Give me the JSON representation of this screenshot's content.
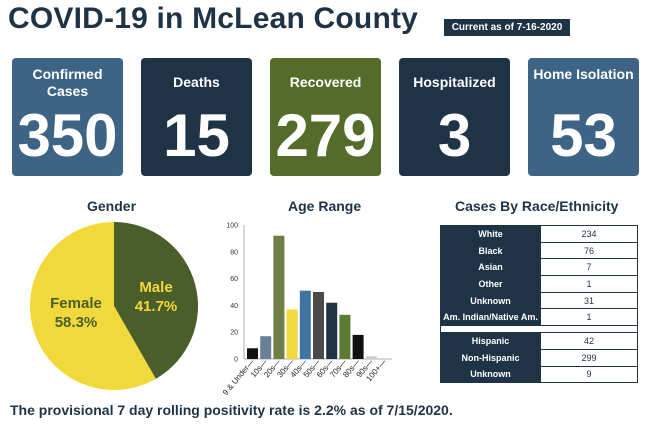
{
  "header": {
    "title": "COVID-19 in McLean County",
    "as_of": "Current as of 7-16-2020"
  },
  "cards": [
    {
      "label": "Confirmed Cases",
      "value": "350",
      "color": "#3d6485"
    },
    {
      "label": "Deaths",
      "value": "15",
      "color": "#1f3347"
    },
    {
      "label": "Recovered",
      "value": "279",
      "color": "#556b2a"
    },
    {
      "label": "Hospitalized",
      "value": "3",
      "color": "#1f3347"
    },
    {
      "label": "Home Isolation",
      "value": "53",
      "color": "#3d6485"
    }
  ],
  "gender": {
    "title": "Gender",
    "slices": [
      {
        "label": "Male",
        "percent_label": "41.7%",
        "value": 41.7,
        "color": "#4b5e2a",
        "text_color": "#f2d93b"
      },
      {
        "label": "Female",
        "percent_label": "58.3%",
        "value": 58.3,
        "color": "#f2d93b",
        "text_color": "#4b5e2a"
      }
    ]
  },
  "age": {
    "title": "Age Range",
    "yticks": [
      "0",
      "20",
      "40",
      "60",
      "80",
      "100"
    ],
    "ylim": [
      0,
      100
    ],
    "categories": [
      "9 & Under",
      "10s",
      "20s",
      "30s",
      "40s",
      "50s",
      "60s",
      "70s",
      "80s",
      "90s",
      "100+"
    ],
    "values": [
      8,
      17,
      92,
      37,
      51,
      50,
      42,
      33,
      18,
      2,
      0
    ],
    "colors": [
      "#111111",
      "#6b7f96",
      "#6f7e45",
      "#f2d93b",
      "#3f73a0",
      "#4a4a4a",
      "#1f3347",
      "#5c7a31",
      "#111111",
      "#cccccc",
      "#ffffff"
    ]
  },
  "race": {
    "title": "Cases By Race/Ethnicity",
    "rows": [
      {
        "label": "White",
        "value": "234"
      },
      {
        "label": "Black",
        "value": "76"
      },
      {
        "label": "Asian",
        "value": "7"
      },
      {
        "label": "Other",
        "value": "1"
      },
      {
        "label": "Unknown",
        "value": "31"
      },
      {
        "label": "Am. Indian/Native Am.",
        "value": "1"
      }
    ],
    "ethnicity_rows": [
      {
        "label": "Hispanic",
        "value": "42"
      },
      {
        "label": "Non-Hispanic",
        "value": "299"
      },
      {
        "label": "Unknown",
        "value": "9"
      }
    ]
  },
  "footer": {
    "text": "The provisional 7 day rolling positivity rate is 2.2% as of 7/15/2020."
  }
}
